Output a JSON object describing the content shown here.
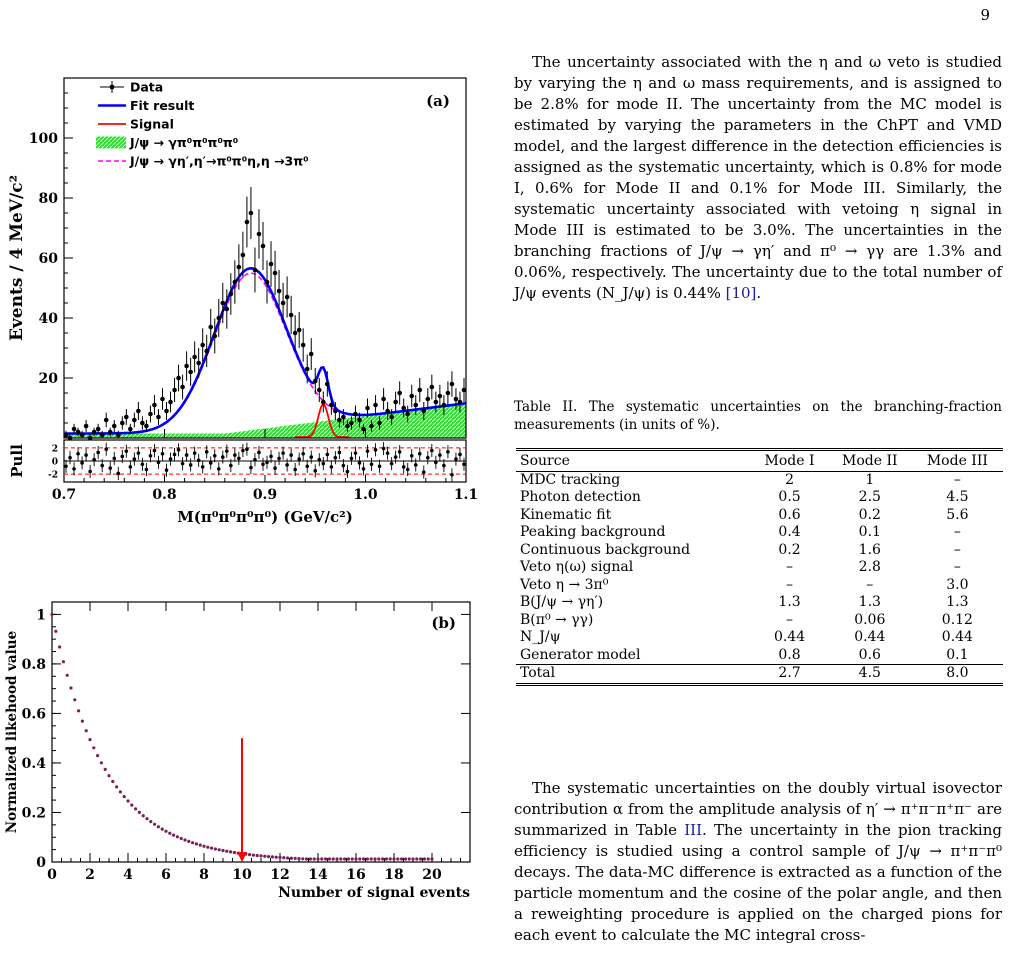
{
  "page_number": "9",
  "right_column": {
    "paragraph1": "The uncertainty associated with the η and ω veto is studied by varying the η and ω mass requirements, and is assigned to be 2.8% for mode II. The uncertainty from the MC model is estimated by varying the parameters in the ChPT and VMD model, and the largest difference in the detection efficiencies is assigned as the systematic uncertainty, which is 0.8% for mode I, 0.6% for Mode II and 0.1% for Mode III. Similarly, the systematic uncertainty associated with vetoing η signal in Mode III is estimated to be 3.0%. The uncertainties in the branching fractions of J/ψ → γη′ and π⁰ → γγ are 1.3% and 0.06%, respectively. The uncertainty due to the total number of J/ψ events (N_J/ψ) is 0.44%",
    "paragraph1_ref": "[10]",
    "table_caption": "Table II. The systematic uncertainties on the branching-fraction measurements (in units of %).",
    "paragraph2_a": "The systematic uncertainties on the doubly virtual isovector contribution α from the amplitude analysis of η′ → π⁺π⁻π⁺π⁻ are summarized in Table",
    "paragraph2_ref": "III",
    "paragraph2_b": ". The uncertainty in the pion tracking efficiency is studied using a control sample of J/ψ → π⁺π⁻π⁰ decays. The data-MC difference is extracted as a function of the particle momentum and the cosine of the polar angle, and then a reweighting procedure is applied on the charged pions for each event to calculate the MC integral cross-"
  },
  "table": {
    "headers": [
      "Source",
      "Mode I",
      "Mode II",
      "Mode III"
    ],
    "rows": [
      [
        "MDC tracking",
        "2",
        "1",
        "–"
      ],
      [
        "Photon detection",
        "0.5",
        "2.5",
        "4.5"
      ],
      [
        "Kinematic fit",
        "0.6",
        "0.2",
        "5.6"
      ],
      [
        "Peaking background",
        "0.4",
        "0.1",
        "–"
      ],
      [
        "Continuous background",
        "0.2",
        "1.6",
        "–"
      ],
      [
        "Veto η(ω) signal",
        "–",
        "2.8",
        "–"
      ],
      [
        "Veto η → 3π⁰",
        "–",
        "–",
        "3.0"
      ],
      [
        "B(J/ψ → γη′)",
        "1.3",
        "1.3",
        "1.3"
      ],
      [
        "B(π⁰ → γγ)",
        "–",
        "0.06",
        "0.12"
      ],
      [
        "N_J/ψ",
        "0.44",
        "0.44",
        "0.44"
      ],
      [
        "Generator model",
        "0.8",
        "0.6",
        "0.1"
      ]
    ],
    "total": [
      "Total",
      "2.7",
      "4.5",
      "8.0"
    ]
  },
  "chart_data": [
    {
      "type": "scatter",
      "panel_label": "(a)",
      "xlabel": "M(π⁰π⁰π⁰π⁰) (GeV/c²)",
      "ylabel": "Events / 4 MeV/c²",
      "pull_label": "Pull",
      "xlim": [
        0.7,
        1.1
      ],
      "ylim": [
        0,
        120
      ],
      "xticks": [
        "0.7",
        "0.8",
        "0.9",
        "1.0",
        "1.1"
      ],
      "yticks": [
        "20",
        "40",
        "60",
        "80",
        "100"
      ],
      "pull_ticks": [
        "2",
        "0",
        "-2"
      ],
      "legend": [
        "Data",
        "Fit result",
        "Signal",
        "J/ψ → γπ⁰π⁰π⁰π⁰",
        "J/ψ → γη′,η′→π⁰π⁰η,η →3π⁰"
      ],
      "legend_position": "top-left",
      "colors": {
        "data": "#000000",
        "fit": "#0000ff",
        "signal": "#ff0000",
        "background_fill": "#33dd33",
        "background_line": "#ff00ff"
      },
      "fit_model": {
        "peak_mass": 0.885,
        "peak_height": 54,
        "width": 0.036,
        "signal_mass": 0.958,
        "signal_height": 11,
        "signal_width": 0.005,
        "background_start": 1.5,
        "background_end": 12
      },
      "data_x": [
        0.702,
        0.706,
        0.71,
        0.714,
        0.718,
        0.722,
        0.726,
        0.73,
        0.734,
        0.738,
        0.742,
        0.746,
        0.75,
        0.754,
        0.758,
        0.762,
        0.766,
        0.77,
        0.774,
        0.778,
        0.782,
        0.786,
        0.79,
        0.794,
        0.798,
        0.802,
        0.806,
        0.81,
        0.814,
        0.818,
        0.822,
        0.826,
        0.83,
        0.834,
        0.838,
        0.842,
        0.846,
        0.85,
        0.854,
        0.858,
        0.862,
        0.866,
        0.87,
        0.874,
        0.878,
        0.882,
        0.886,
        0.89,
        0.894,
        0.898,
        0.902,
        0.906,
        0.91,
        0.914,
        0.918,
        0.922,
        0.926,
        0.93,
        0.934,
        0.938,
        0.942,
        0.946,
        0.95,
        0.954,
        0.958,
        0.962,
        0.966,
        0.97,
        0.974,
        0.978,
        0.982,
        0.986,
        0.99,
        0.994,
        0.998,
        1.002,
        1.006,
        1.01,
        1.014,
        1.018,
        1.022,
        1.026,
        1.03,
        1.034,
        1.038,
        1.042,
        1.046,
        1.05,
        1.054,
        1.058,
        1.062,
        1.066,
        1.07,
        1.074,
        1.078,
        1.082,
        1.086,
        1.09,
        1.094,
        1.098
      ],
      "data_y": [
        1,
        0,
        3,
        2,
        1,
        4,
        0,
        2,
        3,
        1,
        6,
        2,
        4,
        1,
        5,
        7,
        3,
        6,
        9,
        5,
        4,
        8,
        11,
        7,
        13,
        9,
        12,
        16,
        20,
        17,
        24,
        22,
        27,
        25,
        31,
        29,
        37,
        34,
        40,
        45,
        43,
        48,
        52,
        57,
        61,
        72,
        75,
        56,
        68,
        64,
        52,
        58,
        55,
        49,
        45,
        47,
        41,
        35,
        36,
        31,
        23,
        28,
        19,
        16,
        12,
        18,
        11,
        9,
        6,
        7,
        4,
        5,
        8,
        6,
        3,
        10,
        4,
        11,
        5,
        13,
        9,
        7,
        12,
        15,
        10,
        8,
        14,
        11,
        16,
        9,
        13,
        17,
        12,
        14,
        11,
        15,
        18,
        13,
        12,
        16
      ],
      "pull_values": [
        -0.8,
        0.5,
        -1.2,
        1.1,
        -0.3,
        0.9,
        -1.6,
        0.2,
        1.3,
        -0.7,
        1.8,
        -1.1,
        0.4,
        -1.9,
        0.7,
        1.5,
        -0.9,
        0.3,
        1.2,
        -0.5,
        -1.3,
        0.8,
        1.6,
        -0.2,
        1.1,
        -1.4,
        0.3,
        1.0,
        1.7,
        -0.4,
        0.9,
        -0.6,
        1.2,
        0.1,
        -0.9,
        1.4,
        -0.3,
        0.8,
        -1.2,
        0.6,
        1.5,
        -0.7,
        0.9,
        0.4,
        1.6,
        1.8,
        -1.0,
        0.2,
        1.3,
        -0.5,
        -0.2,
        0.7,
        -1.1,
        0.4,
        1.2,
        -0.6,
        0.9,
        -1.3,
        0.3,
        1.1,
        -0.8,
        0.6,
        -1.5,
        0.2,
        -0.4,
        1.0,
        -0.9,
        0.5,
        1.3,
        -0.7,
        -1.6,
        0.4,
        1.2,
        -0.3,
        -1.2,
        1.5,
        -0.5,
        1.7,
        -0.8,
        1.9,
        1.2,
        -0.4,
        0.6,
        1.4,
        -0.9,
        -1.3,
        0.8,
        -0.6,
        1.1,
        -1.7,
        0.5,
        1.6,
        -0.2,
        0.9,
        -0.7,
        1.4,
        -2.1,
        0.3,
        1.0,
        -0.5
      ]
    },
    {
      "type": "line",
      "panel_label": "(b)",
      "xlabel": "Number of signal events",
      "ylabel": "Normalized likehood value",
      "xlim": [
        0,
        22
      ],
      "ylim": [
        0,
        1.05
      ],
      "xticks": [
        "0",
        "2",
        "4",
        "6",
        "8",
        "10",
        "12",
        "14",
        "16",
        "18",
        "20"
      ],
      "yticks": [
        "0",
        "0.2",
        "0.4",
        "0.6",
        "0.8",
        "1"
      ],
      "curve": {
        "from": 0,
        "to": 20,
        "decay": 2.8,
        "floor": 0.012
      },
      "arrow": {
        "x": 10,
        "y_start": 0.5,
        "y_end": 0,
        "color": "#ff0000"
      },
      "colors": {
        "points": "#7a1f5a"
      }
    }
  ]
}
